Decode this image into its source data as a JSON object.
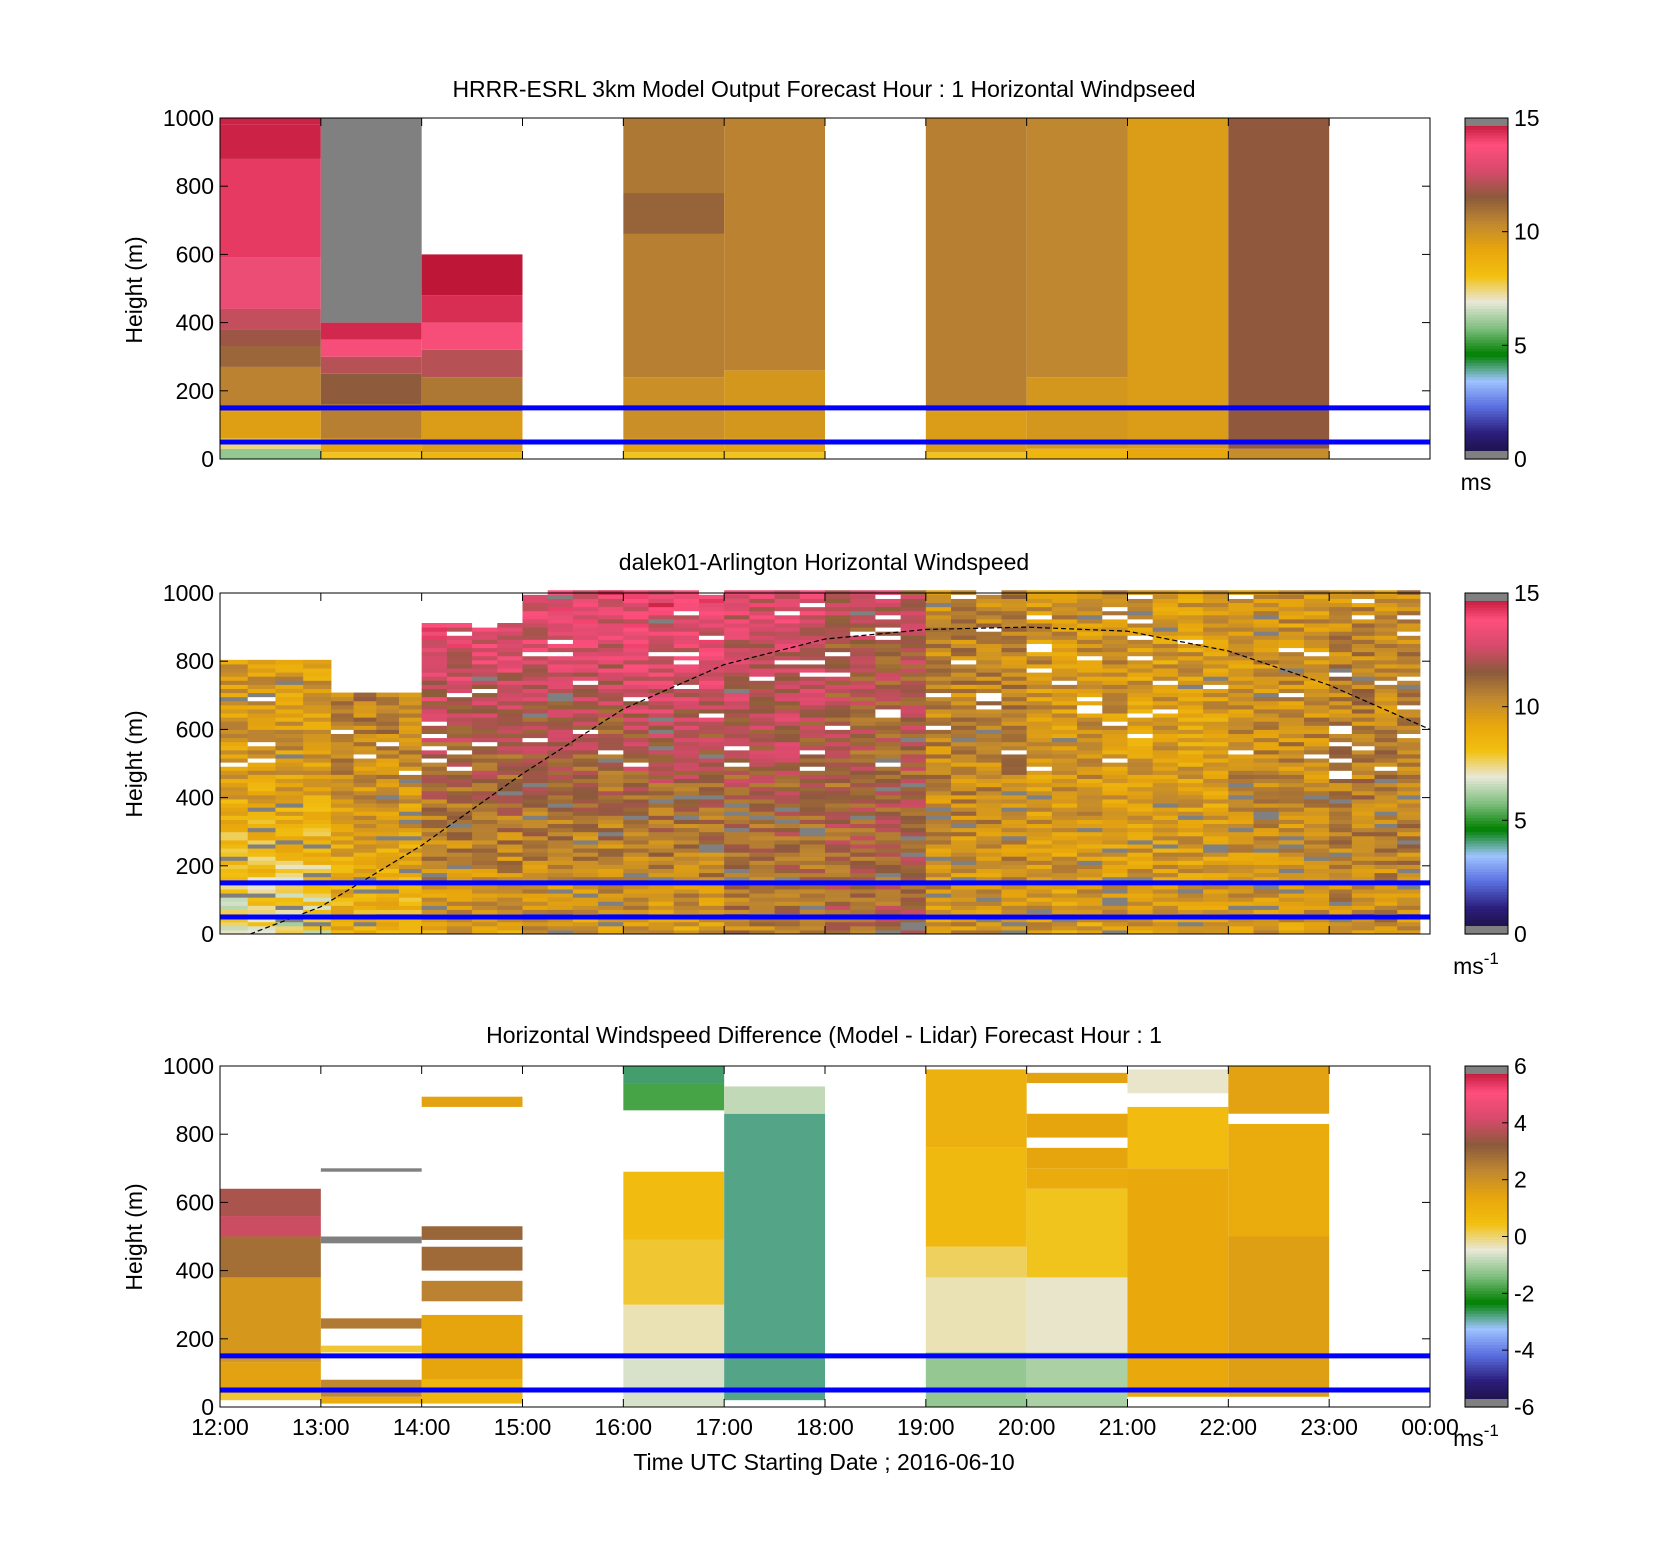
{
  "colors": {
    "overlay_line": "#0000ff",
    "missing": "#808080",
    "scale": [
      "#1a0f38",
      "#2b1d7a",
      "#5a6ee0",
      "#9ec4ff",
      "#008000",
      "#7fbf7f",
      "#e8e8d8",
      "#f2c010",
      "#e8a60c",
      "#c08830",
      "#8c5a3c",
      "#d64a6a",
      "#ff4f7d",
      "#b00a28"
    ]
  },
  "x_ticks": [
    "12:00",
    "13:00",
    "14:00",
    "15:00",
    "16:00",
    "17:00",
    "18:00",
    "19:00",
    "20:00",
    "21:00",
    "22:00",
    "23:00",
    "00:00"
  ],
  "x_label": "Time UTC  Starting Date ; 2016-06-10",
  "chart_data": [
    {
      "type": "heatmap",
      "title": "HRRR-ESRL 3km Model Output   Forecast Hour : 1 Horizontal Windpseed",
      "ylabel": "Height (m)",
      "xlabel": "",
      "x_range_hours": [
        12,
        24
      ],
      "ylim": [
        0,
        1000
      ],
      "yticks": [
        "0",
        "200",
        "400",
        "600",
        "800",
        "1000"
      ],
      "overlay_lines_m": [
        50,
        150
      ],
      "colorbar": {
        "ticks": [
          "0",
          "5",
          "10",
          "15"
        ],
        "range": [
          0,
          15
        ],
        "unit": "ms"
      },
      "columns": [
        {
          "start": 12,
          "end": 13,
          "layers": [
            [
              0,
              30,
              6
            ],
            [
              30,
              60,
              7.5
            ],
            [
              60,
              140,
              9.5
            ],
            [
              140,
              270,
              10.5
            ],
            [
              270,
              330,
              11.2
            ],
            [
              330,
              380,
              11.8
            ],
            [
              380,
              440,
              12.4
            ],
            [
              440,
              590,
              13.3
            ],
            [
              590,
              880,
              14.2
            ],
            [
              880,
              980,
              14.6
            ],
            [
              980,
              1000,
              14.6
            ]
          ]
        },
        {
          "start": 13,
          "end": 14,
          "layers": [
            [
              0,
              20,
              8
            ],
            [
              20,
              60,
              9.3
            ],
            [
              60,
              160,
              10.6
            ],
            [
              160,
              250,
              11.5
            ],
            [
              250,
              300,
              12.2
            ],
            [
              300,
              350,
              13.6
            ],
            [
              350,
              400,
              14.5
            ],
            [
              400,
              1000,
              -1
            ]
          ]
        },
        {
          "start": 14,
          "end": 15,
          "layers": [
            [
              0,
              20,
              8.5
            ],
            [
              20,
              140,
              9.6
            ],
            [
              140,
              240,
              10.8
            ],
            [
              240,
              320,
              12.2
            ],
            [
              320,
              400,
              13.6
            ],
            [
              400,
              480,
              14.4
            ],
            [
              480,
              600,
              14.8
            ]
          ]
        },
        {
          "start": 16,
          "end": 17,
          "layers": [
            [
              0,
              20,
              8
            ],
            [
              20,
              60,
              9.4
            ],
            [
              60,
              240,
              10.1
            ],
            [
              240,
              660,
              10.6
            ],
            [
              660,
              780,
              11.3
            ],
            [
              780,
              1000,
              10.8
            ]
          ]
        },
        {
          "start": 17,
          "end": 18,
          "layers": [
            [
              0,
              20,
              8
            ],
            [
              20,
              60,
              9.4
            ],
            [
              60,
              260,
              9.8
            ],
            [
              260,
              1000,
              10.5
            ]
          ]
        },
        {
          "start": 19,
          "end": 20,
          "layers": [
            [
              0,
              20,
              8
            ],
            [
              20,
              140,
              9.6
            ],
            [
              140,
              1000,
              10.6
            ]
          ]
        },
        {
          "start": 20,
          "end": 21,
          "layers": [
            [
              0,
              30,
              8.5
            ],
            [
              30,
              240,
              9.8
            ],
            [
              240,
              1000,
              10.4
            ]
          ]
        },
        {
          "start": 21,
          "end": 22,
          "layers": [
            [
              0,
              30,
              9.2
            ],
            [
              30,
              1000,
              9.6
            ]
          ]
        },
        {
          "start": 22,
          "end": 23,
          "layers": [
            [
              0,
              30,
              10.2
            ],
            [
              30,
              1000,
              11.6
            ]
          ]
        }
      ]
    },
    {
      "type": "heatmap",
      "title": "dalek01-Arlington  Horizontal Windspeed",
      "ylabel": "Height (m)",
      "xlabel": "",
      "x_range_hours": [
        12,
        24
      ],
      "ylim": [
        0,
        1000
      ],
      "yticks": [
        "0",
        "200",
        "400",
        "600",
        "800",
        "1000"
      ],
      "overlay_lines_m": [
        50,
        150
      ],
      "curve": {
        "style": "dashed",
        "peak_time_hours": 19.9,
        "peak_height_m": 900,
        "points": [
          [
            12.3,
            0
          ],
          [
            13,
            80
          ],
          [
            14,
            260
          ],
          [
            15,
            470
          ],
          [
            16,
            660
          ],
          [
            17,
            790
          ],
          [
            18,
            865
          ],
          [
            19,
            893
          ],
          [
            20,
            900
          ],
          [
            21,
            888
          ],
          [
            22,
            830
          ],
          [
            23,
            730
          ],
          [
            24,
            600
          ]
        ]
      },
      "colorbar": {
        "ticks": [
          "0",
          "5",
          "10",
          "15"
        ],
        "range": [
          0,
          15
        ],
        "unit": "ms",
        "unit_exp": "-1"
      },
      "profile_profiles": [
        {
          "start": 12,
          "end": 13.1,
          "low": 7,
          "mid": 9.8,
          "high": 9.5,
          "top_m": 800
        },
        {
          "start": 13.1,
          "end": 14.0,
          "low": 8.5,
          "mid": 10.2,
          "high": 11.5,
          "top_m": 700
        },
        {
          "start": 14.0,
          "end": 15.0,
          "low": 9.5,
          "mid": 11.5,
          "high": 13.8,
          "top_m": 900
        },
        {
          "start": 15.0,
          "end": 16.0,
          "low": 9.6,
          "mid": 11.4,
          "high": 13.5,
          "top_m": 1000
        },
        {
          "start": 16.0,
          "end": 17.0,
          "low": 9.6,
          "mid": 11.8,
          "high": 13.6,
          "top_m": 1000
        },
        {
          "start": 17.0,
          "end": 18.0,
          "low": 10.6,
          "mid": 11.8,
          "high": 13.0,
          "top_m": 1000
        },
        {
          "start": 18.0,
          "end": 19.0,
          "low": 11.4,
          "mid": 11.5,
          "high": 12.0,
          "top_m": 1000
        },
        {
          "start": 19.0,
          "end": 20.0,
          "low": 9.8,
          "mid": 10.4,
          "high": 10.4,
          "top_m": 1000
        },
        {
          "start": 20.0,
          "end": 21.0,
          "low": 9.6,
          "mid": 9.8,
          "high": 10.0,
          "top_m": 1000
        },
        {
          "start": 21.0,
          "end": 22.0,
          "low": 9.7,
          "mid": 9.5,
          "high": 9.7,
          "top_m": 1000
        },
        {
          "start": 22.0,
          "end": 23.0,
          "low": 9.7,
          "mid": 10.3,
          "high": 9.8,
          "top_m": 1000
        },
        {
          "start": 23.0,
          "end": 23.9,
          "low": 10.2,
          "mid": 10.6,
          "high": 10.2,
          "top_m": 1000
        }
      ]
    },
    {
      "type": "heatmap",
      "title": "Horizontal Windspeed Difference (Model - Lidar) Forecast Hour : 1",
      "ylabel": "Height (m)",
      "xlabel": "Time UTC  Starting Date ; 2016-06-10",
      "x_range_hours": [
        12,
        24
      ],
      "ylim": [
        0,
        1000
      ],
      "yticks": [
        "0",
        "200",
        "400",
        "600",
        "800",
        "1000"
      ],
      "overlay_lines_m": [
        50,
        150
      ],
      "colorbar": {
        "ticks": [
          "-6",
          "-4",
          "-2",
          "0",
          "2",
          "4",
          "6"
        ],
        "range": [
          -6,
          6
        ],
        "unit": "ms",
        "unit_exp": "-1"
      },
      "columns": [
        {
          "start": 12,
          "end": 13,
          "layers": [
            [
              20,
              40,
              0.3
            ],
            [
              40,
              130,
              1.5
            ],
            [
              130,
              380,
              1.8
            ],
            [
              380,
              500,
              2.8
            ],
            [
              500,
              560,
              4
            ],
            [
              560,
              640,
              3.6
            ]
          ]
        },
        {
          "start": 13,
          "end": 14,
          "layers": [
            [
              10,
              30,
              1.2
            ],
            [
              30,
              80,
              2.3
            ],
            [
              160,
              180,
              0.3
            ],
            [
              230,
              260,
              2.6
            ],
            [
              480,
              500,
              -7
            ],
            [
              690,
              700,
              -7
            ]
          ]
        },
        {
          "start": 14,
          "end": 15,
          "layers": [
            [
              10,
              80,
              0.8
            ],
            [
              80,
              270,
              1.4
            ],
            [
              310,
              370,
              2.4
            ],
            [
              400,
              470,
              2.9
            ],
            [
              490,
              530,
              3
            ],
            [
              880,
              910,
              1.5
            ]
          ]
        },
        {
          "start": 16,
          "end": 17,
          "layers": [
            [
              0,
              140,
              -0.6
            ],
            [
              140,
              300,
              -0.3
            ],
            [
              300,
              490,
              0.3
            ],
            [
              490,
              690,
              0.6
            ],
            [
              870,
              950,
              -1.8
            ],
            [
              950,
              1000,
              -2.7
            ]
          ]
        },
        {
          "start": 17,
          "end": 18,
          "layers": [
            [
              20,
              860,
              -2.8
            ],
            [
              860,
              940,
              -0.8
            ]
          ]
        },
        {
          "start": 19,
          "end": 20,
          "layers": [
            [
              0,
              160,
              -1.2
            ],
            [
              160,
              380,
              -0.3
            ],
            [
              380,
              470,
              0.1
            ],
            [
              470,
              760,
              0.7
            ],
            [
              760,
              990,
              1
            ]
          ]
        },
        {
          "start": 20,
          "end": 21,
          "layers": [
            [
              0,
              160,
              -1
            ],
            [
              160,
              380,
              -0.4
            ],
            [
              380,
              640,
              0.4
            ],
            [
              640,
              700,
              1.2
            ],
            [
              700,
              760,
              1.4
            ],
            [
              790,
              860,
              1.4
            ],
            [
              950,
              980,
              1.5
            ]
          ]
        },
        {
          "start": 21,
          "end": 22,
          "layers": [
            [
              30,
              700,
              1.3
            ],
            [
              700,
              880,
              0.6
            ],
            [
              920,
              990,
              -0.4
            ]
          ]
        },
        {
          "start": 22,
          "end": 23,
          "layers": [
            [
              30,
              500,
              1.6
            ],
            [
              500,
              830,
              1.2
            ],
            [
              860,
              1000,
              1.5
            ]
          ]
        }
      ]
    }
  ]
}
